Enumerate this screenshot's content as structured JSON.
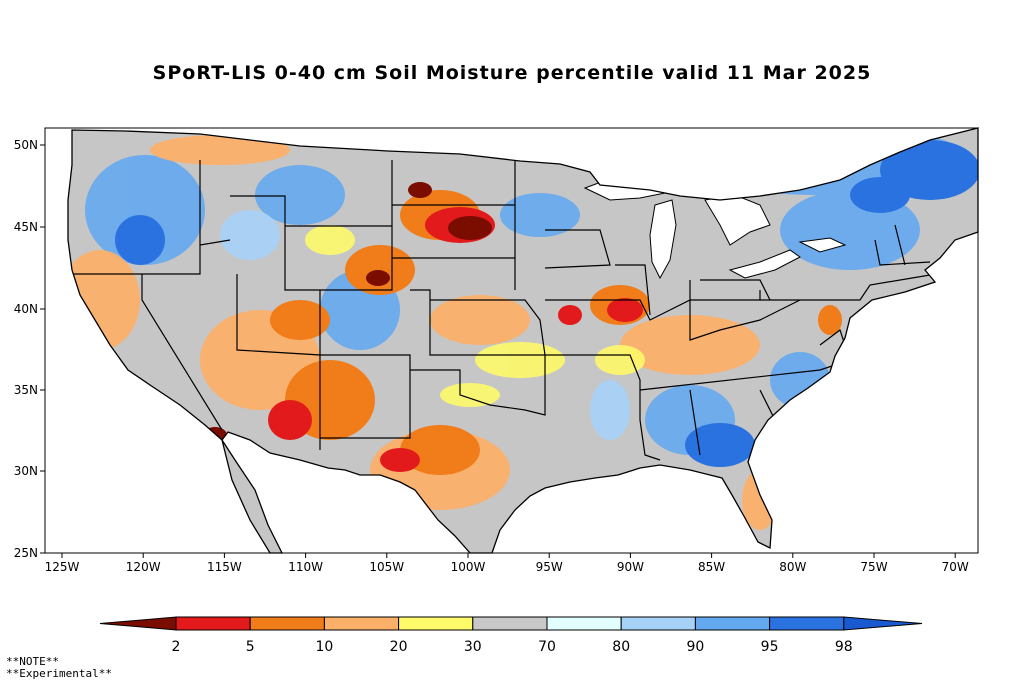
{
  "title": "SPoRT-LIS 0-40 cm Soil Moisture percentile valid 11 Mar 2025",
  "lat_labels": [
    "50N",
    "45N",
    "40N",
    "35N",
    "30N",
    "25N"
  ],
  "lon_labels": [
    "125W",
    "120W",
    "115W",
    "110W",
    "105W",
    "100W",
    "95W",
    "90W",
    "85W",
    "80W",
    "75W",
    "70W"
  ],
  "colorbar": {
    "labels": [
      "2",
      "5",
      "10",
      "20",
      "30",
      "70",
      "80",
      "90",
      "95",
      "98"
    ],
    "colors": [
      "#7a0c00",
      "#e31a1c",
      "#f07c1a",
      "#fbb06a",
      "#fefa6a",
      "#c8c8c8",
      "#e2fefe",
      "#a6d2f8",
      "#64a8f0",
      "#2a72e0",
      "#1a5ad0"
    ]
  },
  "note": [
    "**NOTE**",
    "**Experimental**"
  ]
}
